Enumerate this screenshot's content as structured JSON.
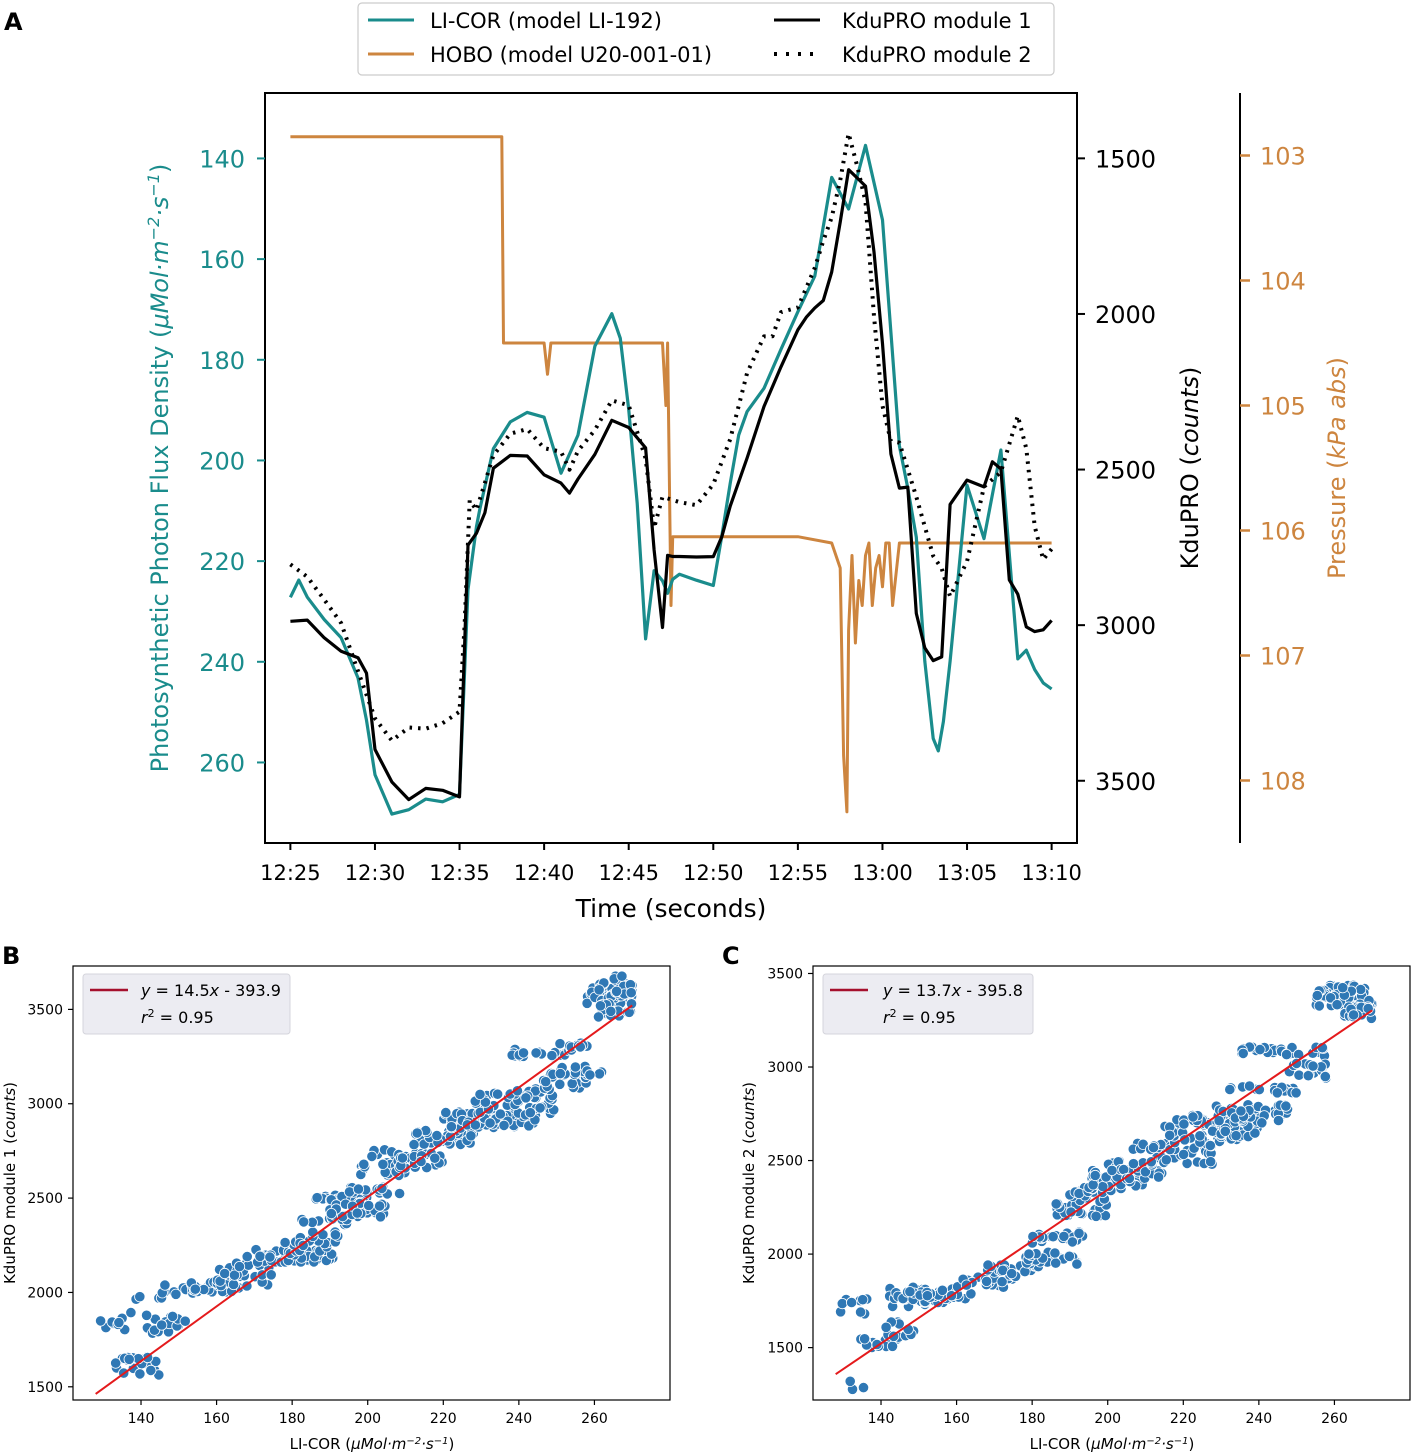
{
  "panel_labels": [
    "A",
    "B",
    "C"
  ],
  "colors": {
    "licor": "#1a8c8c",
    "hobo": "#cd853f",
    "kdu": "#000000",
    "scatter": "#2f78b5",
    "fit": "#e41a1c",
    "legend_line": "#a50f2d"
  },
  "chart_data": [
    {
      "type": "line",
      "panel": "A",
      "xlabel": "Time (seconds)",
      "x_ticks": [
        "12:25",
        "12:30",
        "12:35",
        "12:40",
        "12:45",
        "12:50",
        "12:55",
        "13:00",
        "13:05",
        "13:10"
      ],
      "left_axis": {
        "label_main": "Photosynthetic Photon Flux Density (",
        "label_unit": "μMol·m",
        "label_sup1": "−2",
        "label_mid": "·s",
        "label_sup2": "−1",
        "label_end": ")",
        "ticks": [
          140,
          160,
          180,
          200,
          220,
          240,
          260
        ],
        "range_inverted": [
          127,
          276
        ]
      },
      "right_axis_1": {
        "label_main": "KduPRO (",
        "label_unit": "counts",
        "label_end": ")",
        "ticks": [
          1500,
          2000,
          2500,
          3000,
          3500
        ],
        "range_inverted": [
          1290,
          3700
        ]
      },
      "right_axis_2": {
        "label_main": "Pressure (",
        "label_unit": "kPa abs",
        "label_end": ")",
        "ticks": [
          103,
          104,
          105,
          106,
          107,
          108
        ],
        "range_inverted": [
          102.5,
          108.5
        ]
      },
      "legend": [
        {
          "label": "LI-COR (model LI-192)",
          "style": "solid",
          "color": "#1a8c8c"
        },
        {
          "label": "HOBO (model U20-001-01)",
          "style": "solid",
          "color": "#cd853f"
        },
        {
          "label": "KduPRO module 1",
          "style": "solid",
          "color": "#000000"
        },
        {
          "label": "KduPRO module 2",
          "style": "dotted",
          "color": "#000000"
        }
      ],
      "series": [
        {
          "name": "LI-COR (model LI-192)",
          "axis": "left",
          "x": [
            0,
            0.5,
            1,
            2,
            3,
            4,
            4.5,
            5,
            6,
            7,
            8,
            9,
            10,
            10.5,
            11,
            11.2,
            12,
            13,
            14,
            15,
            16,
            17,
            18,
            19,
            19.5,
            20,
            20.5,
            21,
            21.5,
            22,
            22.3,
            22.6,
            23,
            24,
            25,
            25.5,
            26,
            26.5,
            27,
            28,
            29,
            30,
            31,
            32,
            33,
            34,
            35,
            35.5,
            36,
            36.5,
            37,
            37.5,
            38,
            38.3,
            38.6,
            39,
            40,
            41,
            42,
            43,
            43.5,
            44,
            44.5,
            45
          ],
          "y": [
            227,
            224,
            227,
            231,
            235,
            243,
            252,
            262,
            270,
            269,
            267,
            268,
            266,
            226,
            213,
            210,
            198,
            192,
            190,
            191,
            203,
            195,
            177,
            171,
            176,
            190,
            208,
            235,
            222,
            224,
            226,
            224,
            223,
            224,
            225,
            215,
            204,
            195,
            190,
            186,
            178,
            170,
            163,
            144,
            150,
            137,
            152,
            175,
            197,
            206,
            215,
            240,
            255,
            258,
            252,
            240,
            205,
            215,
            198,
            240,
            238,
            242,
            244,
            246
          ]
        },
        {
          "name": "HOBO (model U20-001-01)",
          "axis": "right2",
          "x": [
            0,
            12.5,
            12.6,
            15,
            15.2,
            15.4,
            22,
            22.2,
            22.3,
            22.5,
            22.6,
            22.7,
            23,
            26,
            27,
            30,
            32,
            32.5,
            32.7,
            32.9,
            33,
            33.2,
            33.4,
            33.6,
            33.8,
            34,
            34.2,
            34.4,
            34.6,
            34.8,
            35,
            35.2,
            35.4,
            35.6,
            36,
            37,
            40,
            42,
            45
          ],
          "y": [
            102.85,
            102.85,
            104.5,
            104.5,
            104.75,
            104.5,
            104.5,
            105.0,
            104.5,
            106.6,
            106.05,
            106.05,
            106.05,
            106.05,
            106.05,
            106.05,
            106.1,
            106.3,
            107.8,
            108.25,
            106.8,
            106.2,
            106.9,
            106.4,
            106.6,
            106.2,
            106.1,
            106.6,
            106.3,
            106.2,
            106.45,
            106.1,
            106.1,
            106.6,
            106.1,
            106.1,
            106.1,
            106.1,
            106.1
          ]
        },
        {
          "name": "KduPRO module 1",
          "axis": "right1",
          "x": [
            0,
            1,
            2,
            3,
            4,
            4.5,
            5,
            6,
            7,
            8,
            9,
            10,
            10.5,
            11,
            11.5,
            12,
            13,
            14,
            15,
            16,
            16.5,
            17,
            18,
            19,
            20,
            21,
            21.5,
            22,
            22.3,
            22.6,
            23,
            24,
            25,
            25.5,
            26,
            27,
            28,
            29,
            30,
            30.5,
            31,
            31.5,
            32,
            32.5,
            33,
            33.5,
            34,
            34.5,
            35,
            35.5,
            36,
            36.5,
            37,
            37.5,
            38,
            38.5,
            39,
            40,
            41,
            41.5,
            42,
            42.5,
            43,
            43.5,
            44,
            44.5,
            45
          ],
          "y": [
            3000,
            2990,
            3040,
            3080,
            3100,
            3150,
            3400,
            3500,
            3550,
            3520,
            3540,
            3550,
            2750,
            2700,
            2640,
            2500,
            2450,
            2460,
            2520,
            2550,
            2580,
            2540,
            2450,
            2330,
            2360,
            2430,
            2750,
            3000,
            2780,
            2780,
            2780,
            2790,
            2770,
            2720,
            2630,
            2460,
            2300,
            2180,
            2060,
            2020,
            1990,
            1950,
            1860,
            1700,
            1540,
            1570,
            1590,
            1790,
            2100,
            2460,
            2550,
            2560,
            2950,
            3080,
            3120,
            3100,
            2600,
            2540,
            2550,
            2480,
            2490,
            2860,
            2900,
            3000,
            3020,
            3010,
            2980
          ]
        },
        {
          "name": "KduPRO module 2",
          "axis": "right1",
          "x": [
            0,
            1,
            2,
            3,
            4,
            5,
            6,
            7,
            8,
            9,
            10,
            10.3,
            10.6,
            11,
            12,
            13,
            14,
            15,
            16,
            16.5,
            17,
            18,
            19,
            20,
            21,
            21.5,
            22,
            23,
            24,
            25,
            26,
            27,
            28,
            28.5,
            29,
            30,
            31,
            31.5,
            32,
            32.5,
            33,
            33.5,
            34,
            34.5,
            35,
            35.5,
            36,
            37,
            38,
            38.5,
            39,
            40,
            41,
            42,
            43,
            43.5,
            44,
            44.5,
            45
          ],
          "y": [
            2810,
            2850,
            2920,
            3000,
            3140,
            3300,
            3370,
            3320,
            3330,
            3310,
            3290,
            3000,
            2600,
            2630,
            2450,
            2390,
            2370,
            2420,
            2450,
            2500,
            2430,
            2370,
            2290,
            2290,
            2460,
            2690,
            2580,
            2600,
            2620,
            2540,
            2390,
            2190,
            2080,
            2070,
            1990,
            1970,
            1850,
            1760,
            1700,
            1560,
            1430,
            1530,
            1640,
            2000,
            2300,
            2400,
            2420,
            2580,
            2780,
            2820,
            2920,
            2800,
            2550,
            2500,
            2320,
            2420,
            2680,
            2780,
            2760
          ]
        }
      ]
    },
    {
      "type": "scatter",
      "panel": "B",
      "xlabel_main": "LI-COR (",
      "xlabel_unit": "μMol·m",
      "xlabel_sup1": "−2",
      "xlabel_mid": "·s",
      "xlabel_sup2": "−1",
      "xlabel_end": ")",
      "ylabel_main": "KduPRO module 1 (",
      "ylabel_unit": "counts",
      "ylabel_end": ")",
      "xlim": [
        122,
        280
      ],
      "ylim": [
        1430,
        3730
      ],
      "x_ticks": [
        140,
        160,
        180,
        200,
        220,
        240,
        260
      ],
      "y_ticks": [
        1500,
        2000,
        2500,
        3000,
        3500
      ],
      "fit": {
        "slope": 14.5,
        "intercept": -393.9,
        "r2": 0.95,
        "x_range": [
          128,
          270
        ]
      },
      "legend": {
        "eq_prefix": "y",
        "eq_text": " = 14.5",
        "eq_var": "x",
        "eq_suffix": " - 393.9",
        "r2_label": "r",
        "r2_sup": "2",
        "r2_text": " = 0.95"
      },
      "clusters": [
        [
          128,
          138,
          1800,
          1900,
          10
        ],
        [
          133,
          145,
          1560,
          1660,
          22
        ],
        [
          137,
          148,
          1960,
          2010,
          6
        ],
        [
          141,
          152,
          1780,
          1880,
          18
        ],
        [
          145,
          158,
          1990,
          2040,
          16
        ],
        [
          153,
          166,
          2000,
          2060,
          20
        ],
        [
          160,
          175,
          2030,
          2160,
          30
        ],
        [
          168,
          185,
          2160,
          2240,
          35
        ],
        [
          178,
          192,
          2160,
          2230,
          24
        ],
        [
          178,
          193,
          2240,
          2320,
          18
        ],
        [
          180,
          195,
          2360,
          2400,
          12
        ],
        [
          185,
          200,
          2470,
          2520,
          26
        ],
        [
          190,
          205,
          2400,
          2480,
          28
        ],
        [
          195,
          210,
          2520,
          2560,
          18
        ],
        [
          198,
          212,
          2620,
          2700,
          20
        ],
        [
          200,
          215,
          2720,
          2760,
          10
        ],
        [
          206,
          220,
          2660,
          2740,
          22
        ],
        [
          212,
          228,
          2780,
          2860,
          40
        ],
        [
          220,
          240,
          2870,
          2960,
          55
        ],
        [
          225,
          245,
          2880,
          2940,
          30
        ],
        [
          228,
          250,
          2940,
          3060,
          40
        ],
        [
          235,
          250,
          3030,
          3080,
          16
        ],
        [
          238,
          255,
          3250,
          3290,
          30
        ],
        [
          245,
          258,
          3080,
          3160,
          20
        ],
        [
          250,
          262,
          3150,
          3200,
          16
        ],
        [
          250,
          258,
          3300,
          3330,
          10
        ],
        [
          258,
          270,
          3530,
          3650,
          60
        ],
        [
          260,
          270,
          3460,
          3540,
          20
        ],
        [
          265,
          270,
          3580,
          3690,
          20
        ]
      ]
    },
    {
      "type": "scatter",
      "panel": "C",
      "xlabel_main": "LI-COR (",
      "xlabel_unit": "μMol·m",
      "xlabel_sup1": "−2",
      "xlabel_mid": "·s",
      "xlabel_sup2": "−1",
      "xlabel_end": ")",
      "ylabel_main": "KduPRO module 2 (",
      "ylabel_unit": "counts",
      "ylabel_end": ")",
      "xlim": [
        122,
        280
      ],
      "ylim": [
        1220,
        3540
      ],
      "x_ticks": [
        140,
        160,
        180,
        200,
        220,
        240,
        260
      ],
      "y_ticks": [
        1500,
        2000,
        2500,
        3000,
        3500
      ],
      "fit": {
        "slope": 13.7,
        "intercept": -395.8,
        "r2": 0.95,
        "x_range": [
          128,
          270
        ]
      },
      "legend": {
        "eq_prefix": "y",
        "eq_text": " = 13.7",
        "eq_var": "x",
        "eq_suffix": " - 395.8",
        "r2_label": "r",
        "r2_sup": "2",
        "r2_text": " = 0.95"
      },
      "clusters": [
        [
          128,
          138,
          1680,
          1760,
          10
        ],
        [
          131,
          136,
          1260,
          1320,
          3
        ],
        [
          134,
          145,
          1500,
          1560,
          20
        ],
        [
          140,
          150,
          1560,
          1640,
          10
        ],
        [
          142,
          152,
          1720,
          1830,
          20
        ],
        [
          147,
          160,
          1740,
          1800,
          24
        ],
        [
          152,
          166,
          1760,
          1820,
          20
        ],
        [
          160,
          175,
          1820,
          1880,
          24
        ],
        [
          168,
          182,
          1880,
          1950,
          24
        ],
        [
          178,
          192,
          1940,
          2010,
          30
        ],
        [
          180,
          195,
          2050,
          2120,
          24
        ],
        [
          185,
          200,
          2200,
          2280,
          30
        ],
        [
          190,
          205,
          2280,
          2360,
          30
        ],
        [
          195,
          210,
          2350,
          2450,
          40
        ],
        [
          200,
          215,
          2400,
          2500,
          30
        ],
        [
          206,
          218,
          2560,
          2600,
          14
        ],
        [
          210,
          228,
          2480,
          2580,
          30
        ],
        [
          215,
          235,
          2580,
          2720,
          50
        ],
        [
          222,
          240,
          2620,
          2760,
          50
        ],
        [
          228,
          248,
          2700,
          2800,
          40
        ],
        [
          232,
          250,
          2860,
          2900,
          20
        ],
        [
          235,
          258,
          3060,
          3110,
          30
        ],
        [
          248,
          258,
          2940,
          3020,
          18
        ],
        [
          255,
          270,
          3320,
          3440,
          60
        ],
        [
          262,
          270,
          3240,
          3320,
          16
        ]
      ]
    }
  ]
}
